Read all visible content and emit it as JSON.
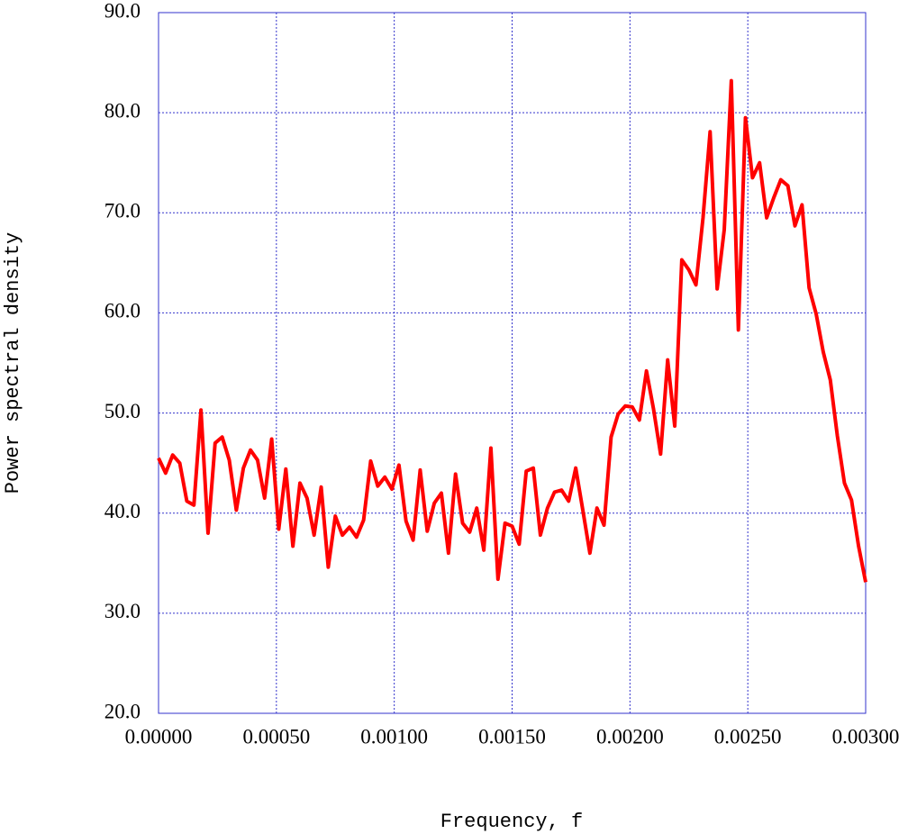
{
  "chart_data": {
    "type": "line",
    "xlabel": "Frequency, f",
    "ylabel": "Power spectral density",
    "x": [
      0,
      3e-05,
      6e-05,
      9e-05,
      0.00012,
      0.00015,
      0.00018,
      0.00021,
      0.00024,
      0.00027,
      0.0003,
      0.00033,
      0.00036,
      0.00039,
      0.00042,
      0.00045,
      0.00048,
      0.00051,
      0.00054,
      0.00057,
      0.0006,
      0.00063,
      0.00066,
      0.00069,
      0.00072,
      0.00075,
      0.00078,
      0.00081,
      0.00084,
      0.00087,
      0.0009,
      0.00093,
      0.00096,
      0.00099,
      0.00102,
      0.00105,
      0.00108,
      0.00111,
      0.00114,
      0.00117,
      0.0012,
      0.00123,
      0.00126,
      0.00129,
      0.00132,
      0.00135,
      0.00138,
      0.00141,
      0.00144,
      0.00147,
      0.0015,
      0.00153,
      0.00156,
      0.00159,
      0.00162,
      0.00165,
      0.00168,
      0.00171,
      0.00174,
      0.00177,
      0.0018,
      0.00183,
      0.00186,
      0.00189,
      0.00192,
      0.00195,
      0.00198,
      0.00201,
      0.00204,
      0.00207,
      0.0021,
      0.00213,
      0.00216,
      0.00219,
      0.00222,
      0.00225,
      0.00228,
      0.00231,
      0.00234,
      0.00237,
      0.0024,
      0.00243,
      0.00246,
      0.00249,
      0.00252,
      0.00255,
      0.00258,
      0.00261,
      0.00264,
      0.00267,
      0.0027,
      0.00273,
      0.00276,
      0.00279,
      0.00282,
      0.00285,
      0.00288,
      0.00291,
      0.00294,
      0.00297,
      0.003
    ],
    "series": [
      {
        "color": "#ff0000",
        "values": [
          45.5,
          44.0,
          45.8,
          45.0,
          41.2,
          40.8,
          50.3,
          38.0,
          47.0,
          47.6,
          45.3,
          40.3,
          44.5,
          46.3,
          45.3,
          41.5,
          47.4,
          38.4,
          44.4,
          36.7,
          43.0,
          41.5,
          37.8,
          42.6,
          34.6,
          39.7,
          37.8,
          38.6,
          37.6,
          39.3,
          45.2,
          42.7,
          43.6,
          42.4,
          44.8,
          39.2,
          37.3,
          44.3,
          38.2,
          41.0,
          42.0,
          36.0,
          43.9,
          39.0,
          38.1,
          40.5,
          36.3,
          46.5,
          33.4,
          39.0,
          38.7,
          36.9,
          44.2,
          44.5,
          37.8,
          40.5,
          42.1,
          42.3,
          41.2,
          44.5,
          40.3,
          36.0,
          40.5,
          38.8,
          47.6,
          49.9,
          50.7,
          50.6,
          49.3,
          54.2,
          50.4,
          45.9,
          55.3,
          48.7,
          65.3,
          64.3,
          62.8,
          69.5,
          78.1,
          62.4,
          68.3,
          83.2,
          58.3,
          79.5,
          73.5,
          75.0,
          69.5,
          71.5,
          73.3,
          72.7,
          68.7,
          70.8,
          62.5,
          59.9,
          56.1,
          53.3,
          47.7,
          43.0,
          41.3,
          36.7,
          33.1
        ]
      }
    ],
    "xlim": [
      0,
      0.003
    ],
    "ylim": [
      20,
      90
    ],
    "xticks": [
      {
        "value": 0,
        "label": "0.00000"
      },
      {
        "value": 0.0005,
        "label": "0.00050"
      },
      {
        "value": 0.001,
        "label": "0.00100"
      },
      {
        "value": 0.0015,
        "label": "0.00150"
      },
      {
        "value": 0.002,
        "label": "0.00200"
      },
      {
        "value": 0.0025,
        "label": "0.00250"
      },
      {
        "value": 0.003,
        "label": "0.00300"
      }
    ],
    "yticks": [
      {
        "value": 20,
        "label": "20.0"
      },
      {
        "value": 30,
        "label": "30.0"
      },
      {
        "value": 40,
        "label": "40.0"
      },
      {
        "value": 50,
        "label": "50.0"
      },
      {
        "value": 60,
        "label": "60.0"
      },
      {
        "value": 70,
        "label": "70.0"
      },
      {
        "value": 80,
        "label": "80.0"
      },
      {
        "value": 90,
        "label": "90.0"
      }
    ],
    "grid": true
  }
}
